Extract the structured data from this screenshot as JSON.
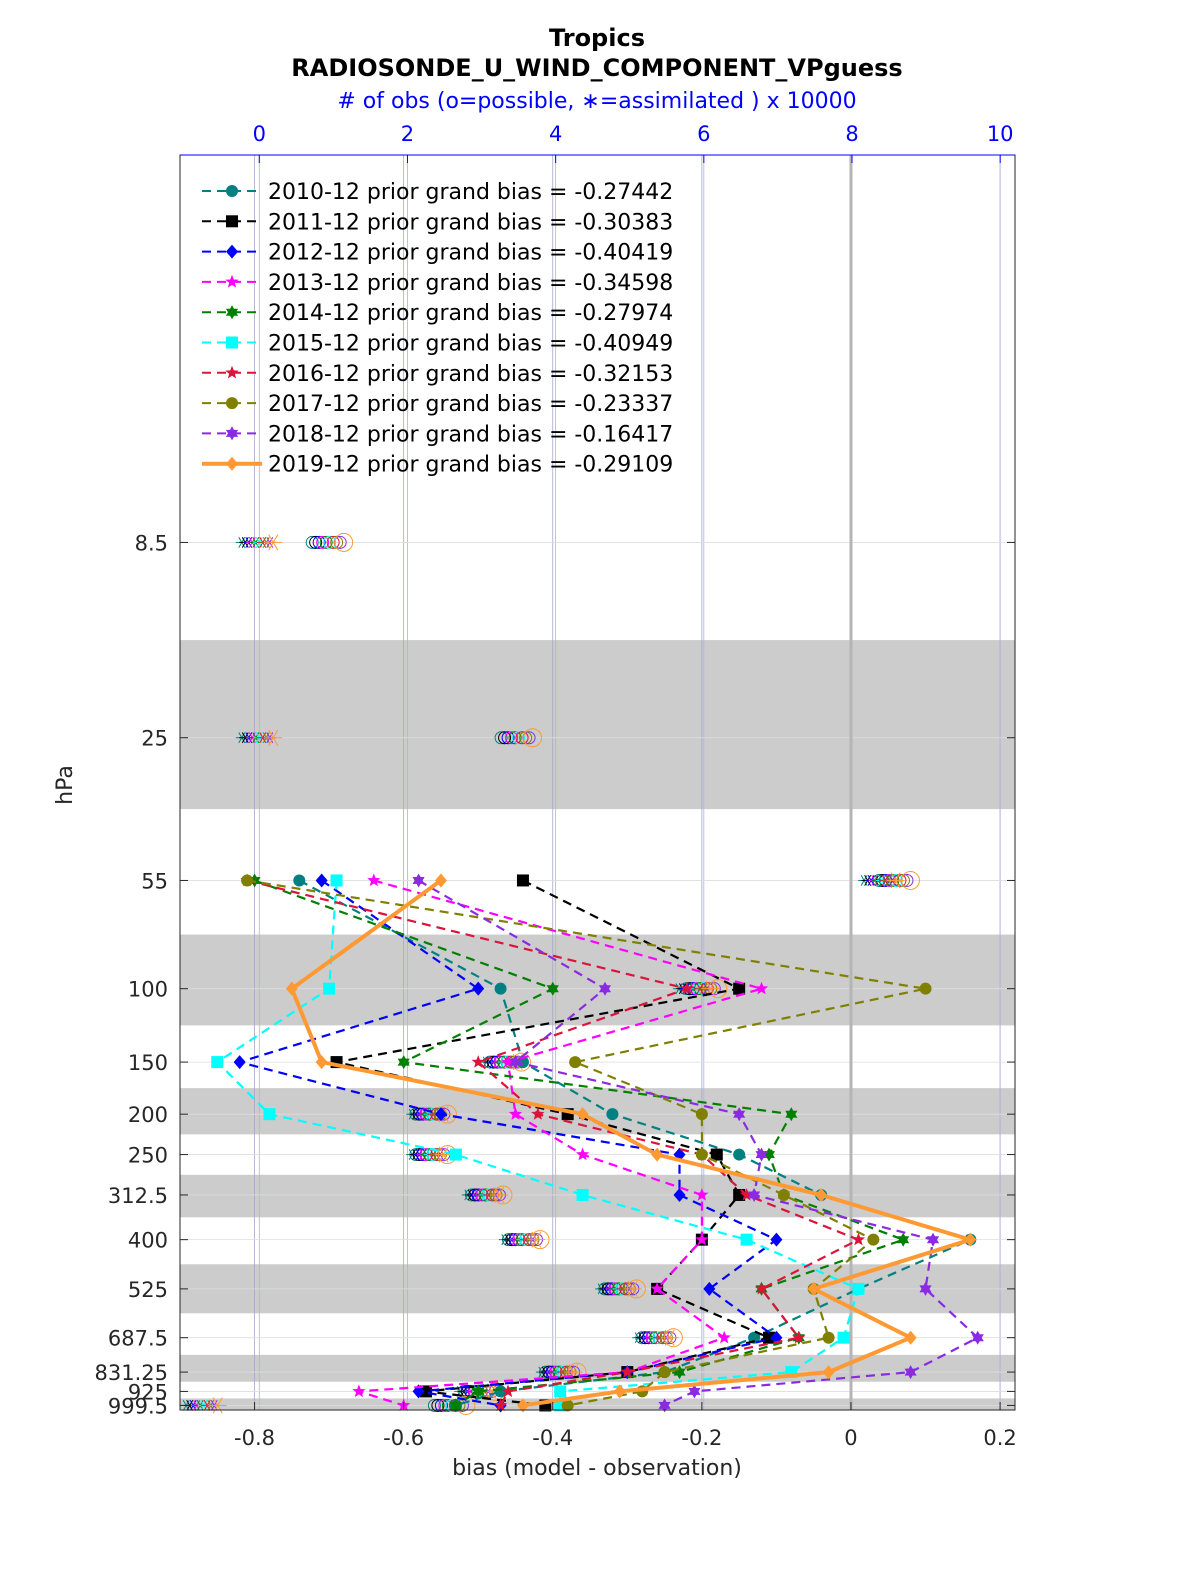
{
  "chart_data": {
    "type": "line",
    "title": "Tropics",
    "subtitle": "RADIOSONDE_U_WIND_COMPONENT_VPguess",
    "top_axis_label": "# of obs (o=possible, ∗=assimilated ) x 10000",
    "xlabel": "bias (model - observation)",
    "ylabel": "hPa",
    "xlim": [
      -0.9,
      0.22
    ],
    "xticks": [
      "-0.8",
      "-0.6",
      "-0.4",
      "-0.2",
      "0",
      "0.2"
    ],
    "xtick_values": [
      -0.8,
      -0.6,
      -0.4,
      -0.2,
      0,
      0.2
    ],
    "top_xlim": [
      -1.07,
      10.2
    ],
    "top_xticks": [
      "0",
      "2",
      "4",
      "6",
      "8",
      "10"
    ],
    "top_xtick_values": [
      0,
      2,
      4,
      6,
      8,
      10
    ],
    "y_scale": "log",
    "y_reversed": true,
    "ylim": [
      1025,
      1.0
    ],
    "levels": [
      8.5,
      25,
      55,
      100,
      150,
      200,
      250,
      312.5,
      400,
      525,
      687.5,
      831.25,
      925,
      999.5
    ],
    "level_labels": [
      "8.5",
      "25",
      "55",
      "100",
      "150",
      "200",
      "250",
      "312.5",
      "400",
      "525",
      "687.5",
      "831.25",
      "925",
      "999.5"
    ],
    "grid": true,
    "legend_position": "top-left",
    "series": [
      {
        "name": "2010-12 prior grand bias = -0.27442",
        "color": "#008080",
        "line": "dashed",
        "marker": "circle",
        "values": [
          null,
          null,
          -0.74,
          -0.47,
          -0.44,
          -0.32,
          -0.15,
          -0.04,
          0.16,
          0.01,
          -0.13,
          -0.25,
          -0.47,
          -0.53
        ]
      },
      {
        "name": "2011-12 prior grand bias = -0.30383",
        "color": "#000000",
        "line": "dashed",
        "marker": "square",
        "values": [
          null,
          null,
          -0.44,
          -0.15,
          -0.69,
          -0.38,
          -0.18,
          -0.15,
          -0.2,
          -0.26,
          -0.11,
          -0.3,
          -0.57,
          -0.41
        ]
      },
      {
        "name": "2012-12 prior grand bias = -0.40419",
        "color": "#0000ff",
        "line": "dashed",
        "marker": "diamond",
        "values": [
          null,
          null,
          -0.71,
          -0.5,
          -0.82,
          -0.55,
          -0.23,
          -0.23,
          -0.1,
          -0.19,
          -0.1,
          -0.3,
          -0.58,
          -0.47
        ]
      },
      {
        "name": "2013-12 prior grand bias = -0.34598",
        "color": "#ff00ff",
        "line": "dashed",
        "marker": "star",
        "values": [
          null,
          null,
          -0.64,
          -0.12,
          -0.46,
          -0.45,
          -0.36,
          -0.2,
          -0.2,
          -0.26,
          -0.17,
          -0.3,
          -0.66,
          -0.6
        ]
      },
      {
        "name": "2014-12 prior grand bias = -0.27974",
        "color": "#008000",
        "line": "dashed",
        "marker": "hexagram",
        "values": [
          null,
          null,
          -0.8,
          -0.4,
          -0.6,
          -0.08,
          -0.11,
          -0.09,
          0.07,
          -0.12,
          -0.07,
          -0.23,
          -0.5,
          -0.53
        ]
      },
      {
        "name": "2015-12 prior grand bias = -0.40949",
        "color": "#00ffff",
        "line": "dashed",
        "marker": "square",
        "values": [
          null,
          null,
          -0.69,
          -0.7,
          -0.85,
          -0.78,
          -0.53,
          -0.36,
          -0.14,
          0.01,
          -0.01,
          -0.08,
          -0.39,
          -0.39
        ]
      },
      {
        "name": "2016-12 prior grand bias = -0.32153",
        "color": "#dc143c",
        "line": "dashed",
        "marker": "star",
        "values": [
          null,
          null,
          -0.81,
          -0.22,
          -0.5,
          -0.42,
          -0.2,
          -0.14,
          0.01,
          -0.12,
          -0.07,
          -0.3,
          -0.46,
          -0.47
        ]
      },
      {
        "name": "2017-12 prior grand bias = -0.23337",
        "color": "#808000",
        "line": "dashed",
        "marker": "circle",
        "values": [
          null,
          null,
          -0.81,
          0.1,
          -0.37,
          -0.2,
          -0.2,
          -0.09,
          0.03,
          -0.05,
          -0.03,
          -0.25,
          -0.28,
          -0.38
        ]
      },
      {
        "name": "2018-12 prior grand bias = -0.16417",
        "color": "#8a2be2",
        "line": "dashed",
        "marker": "hexagram",
        "values": [
          null,
          null,
          -0.58,
          -0.33,
          -0.45,
          -0.15,
          -0.12,
          -0.13,
          0.11,
          0.1,
          0.17,
          0.08,
          -0.21,
          -0.25
        ]
      },
      {
        "name": "2019-12 prior grand bias = -0.29109",
        "color": "#ff9933",
        "line": "solid",
        "marker": "diamond",
        "values": [
          null,
          null,
          -0.55,
          -0.75,
          -0.71,
          -0.36,
          -0.26,
          -0.04,
          0.16,
          -0.05,
          0.08,
          -0.03,
          -0.31,
          -0.44
        ]
      }
    ],
    "obs_counts": [
      {
        "level": "8.5",
        "possible": 0.95,
        "assimilated": 0.0
      },
      {
        "level": "25",
        "possible": 3.5,
        "assimilated": 0.0
      },
      {
        "level": "55",
        "possible": 8.6,
        "assimilated": 8.4
      },
      {
        "level": "100",
        "possible": 6.0,
        "assimilated": 5.9
      },
      {
        "level": "150",
        "possible": 3.35,
        "assimilated": 3.3
      },
      {
        "level": "200",
        "possible": 2.35,
        "assimilated": 2.3
      },
      {
        "level": "250",
        "possible": 2.35,
        "assimilated": 2.3
      },
      {
        "level": "312.5",
        "possible": 3.1,
        "assimilated": 3.05
      },
      {
        "level": "400",
        "possible": 3.6,
        "assimilated": 3.55
      },
      {
        "level": "525",
        "possible": 4.9,
        "assimilated": 4.85
      },
      {
        "level": "687.5",
        "possible": 5.4,
        "assimilated": 5.35
      },
      {
        "level": "831.25",
        "possible": 4.1,
        "assimilated": 4.05
      },
      {
        "level": "925",
        "possible": 3.0,
        "assimilated": 2.95
      },
      {
        "level": "999.5",
        "possible": 2.6,
        "assimilated": -0.75
      }
    ]
  }
}
